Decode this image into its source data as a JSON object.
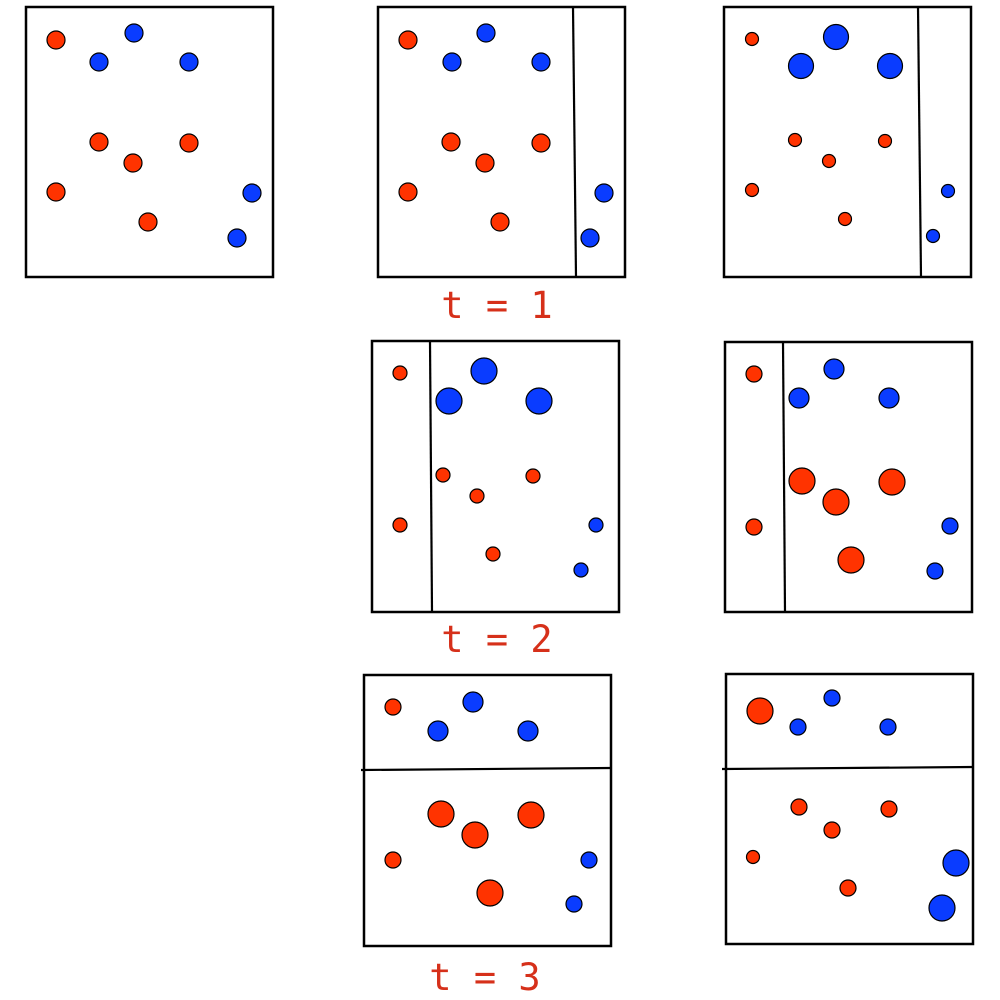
{
  "colors": {
    "red_dot": "#ff3300",
    "blue_dot": "#0a3cff",
    "label_text": "#d6301a",
    "frame": "#000000",
    "background": "#ffffff"
  },
  "labels": {
    "t1": "t = 1",
    "t2": "t = 2",
    "t3": "t = 3"
  }
}
